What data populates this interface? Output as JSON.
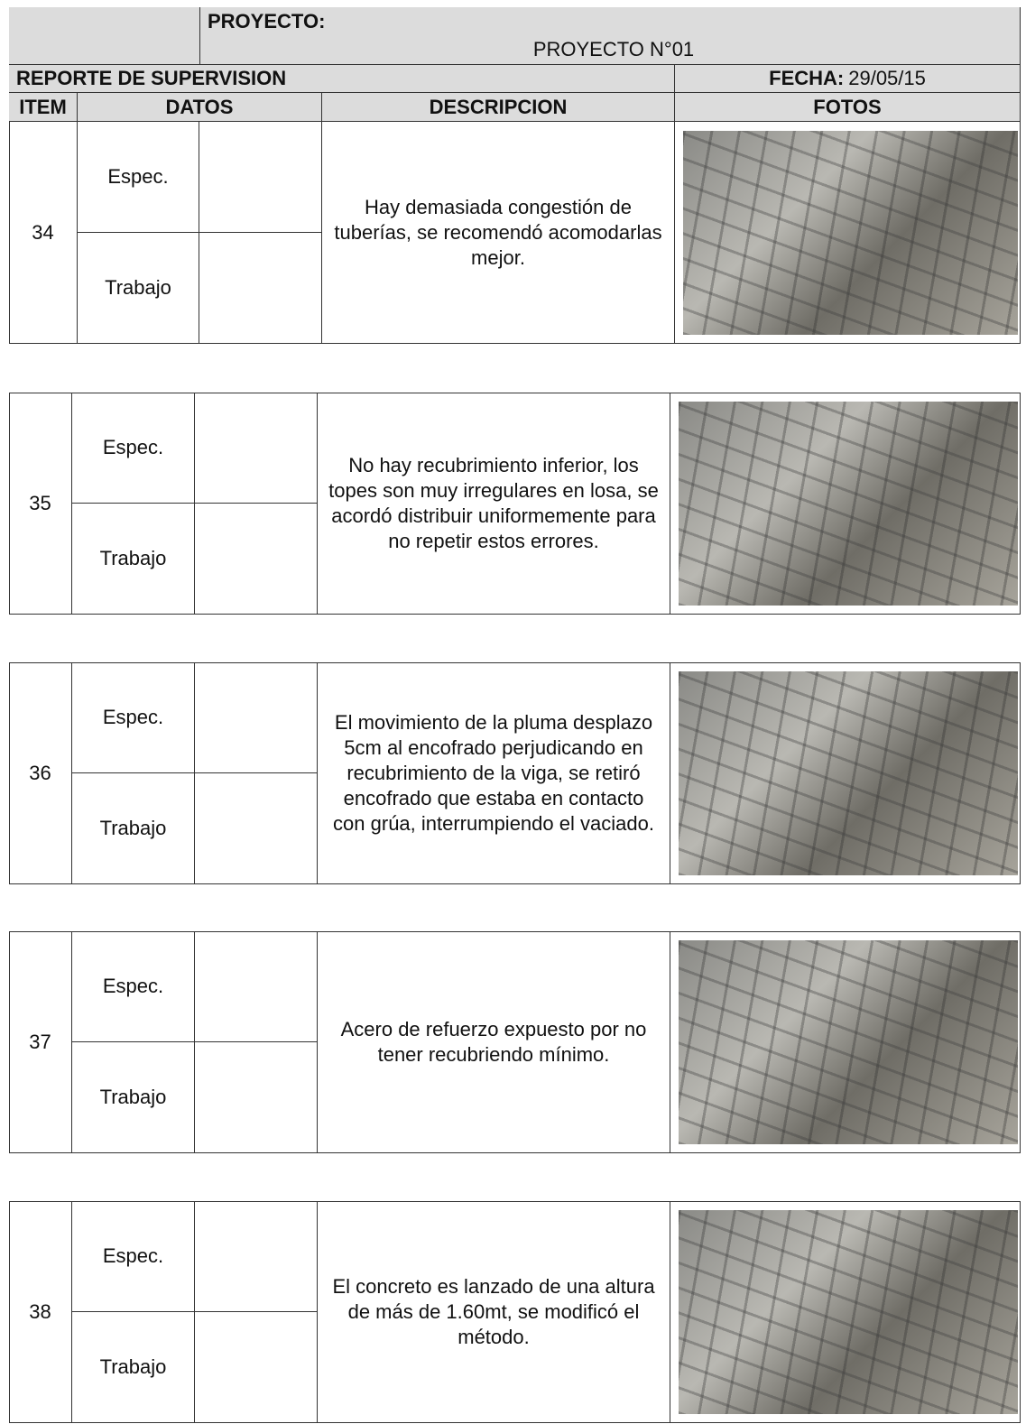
{
  "header": {
    "title": "PROYECTO:",
    "project": "PROYECTO N°01",
    "report": "REPORTE DE SUPERVISION",
    "date_label": "FECHA:",
    "date": "29/05/15"
  },
  "columns": [
    "ITEM",
    "DATOS",
    "DESCRIPCION",
    "FOTOS"
  ],
  "items": [
    {
      "item": "34",
      "spec": "Espec.",
      "work": "Trabajo",
      "description": "Hay demasiada congestión de tuberías, se recomendó acomodarlas mejor."
    },
    {
      "item": "35",
      "spec": "Espec.",
      "work": "Trabajo",
      "description": "No hay recubrimiento inferior, los topes son muy irregulares en losa, se acordó distribuir uniformemente para no repetir estos errores."
    },
    {
      "item": "36",
      "spec": "Espec.",
      "work": "Trabajo",
      "description": "El movimiento de la pluma desplazo 5cm al encofrado perjudicando en recubrimiento de la viga, se retiró encofrado que estaba en contacto con grúa, interrumpiendo el vaciado."
    },
    {
      "item": "37",
      "spec": "Espec.",
      "work": "Trabajo",
      "description": "Acero de refuerzo expuesto por no tener recubriendo mínimo."
    },
    {
      "item": "38",
      "spec": "Espec.",
      "work": "Trabajo",
      "description": "El concreto es lanzado de una altura de más de 1.60mt, se modificó el método."
    }
  ]
}
